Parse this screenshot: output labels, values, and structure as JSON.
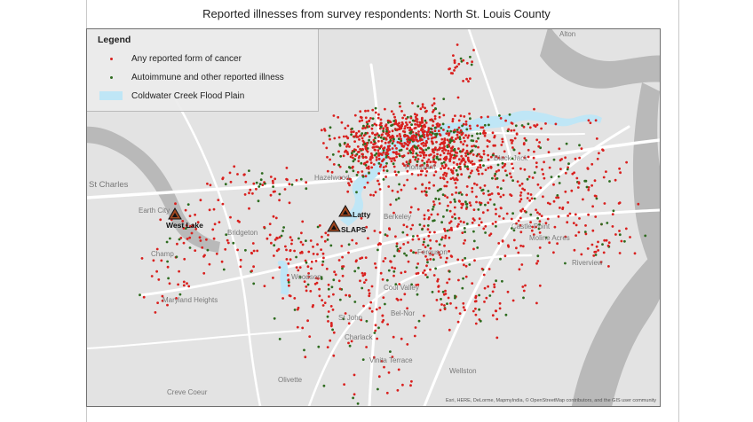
{
  "title": "Reported illnesses from survey respondents:  North St. Louis County",
  "legend": {
    "title": "Legend",
    "items": [
      {
        "label": "Any reported form of cancer",
        "color": "#d9201e",
        "symbol": "dot"
      },
      {
        "label": "Autoimmune and other reported illness",
        "color": "#2e6b1f",
        "symbol": "dot"
      },
      {
        "label": "Coldwater Creek Flood Plain",
        "color": "#bfe6f6",
        "symbol": "swatch"
      }
    ]
  },
  "sites": {
    "west_lake": "West Lake",
    "latty": "Latty",
    "slaps": "SLAPS"
  },
  "places": {
    "alton": "Alton",
    "st_charles": "St Charles",
    "earth_city": "Earth City",
    "bridgeton": "Bridgeton",
    "champ": "Champ",
    "maryland_heights": "Maryland Heights",
    "hazelwood": "Hazelwood",
    "florissant": "Florissant",
    "black_jack": "Black Jack",
    "berkeley": "Berkeley",
    "ferguson": "Ferguson",
    "castle_point": "Castle Point",
    "moline_acres": "Moline Acres",
    "riverview": "Riverview",
    "cool_valley": "Cool Valley",
    "woodson": "Woodson",
    "st_john": "St John",
    "bel_nor": "Bel-Nor",
    "charlack": "Charlack",
    "vinita_terrace": "Vinita Terrace",
    "wellston": "Wellston",
    "olivette": "Olivette",
    "creve_coeur": "Creve Coeur"
  },
  "colors": {
    "cancer": "#d9201e",
    "other": "#2e6b1f",
    "flood_plain": "#bfe6f6",
    "map_bg": "#e3e3e3",
    "river": "#b9b9b9",
    "road": "#ffffff",
    "site_marker": "#a0461f"
  },
  "attribution": "Esri, HERE, DeLorme, MapmyIndia, © OpenStreetMap contributors, and the GIS user community"
}
